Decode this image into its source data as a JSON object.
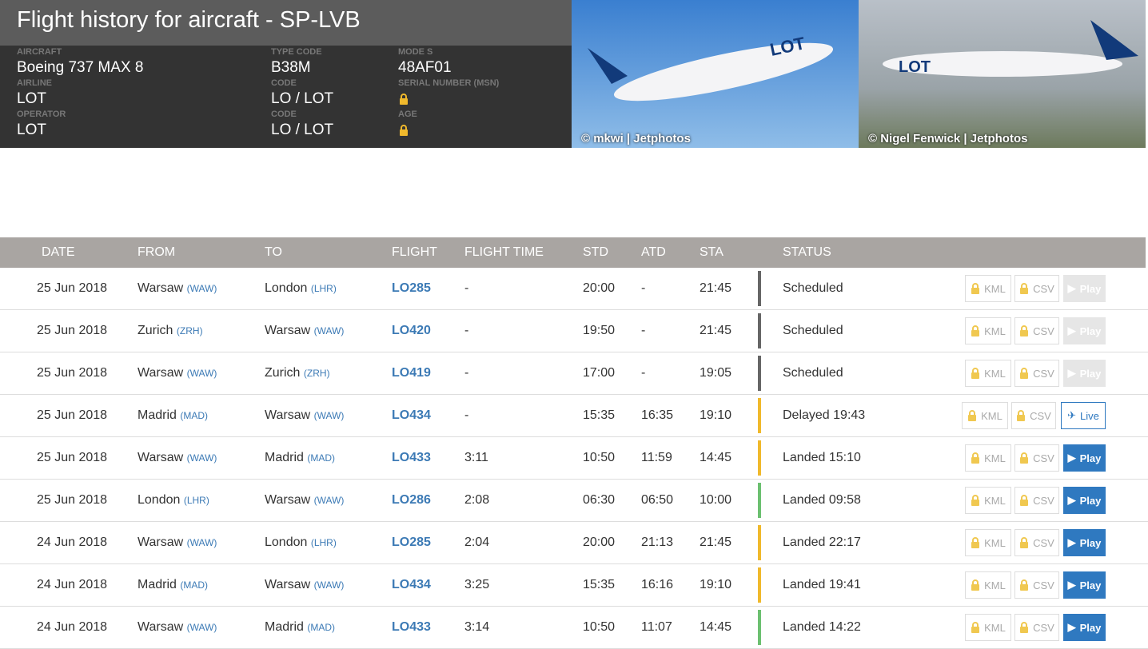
{
  "header": {
    "title": "Flight history for aircraft - SP-LVB",
    "fields": [
      {
        "label": "AIRCRAFT",
        "value": "Boeing 737 MAX 8"
      },
      {
        "label": "AIRLINE",
        "value": "LOT"
      },
      {
        "label": "OPERATOR",
        "value": "LOT"
      },
      {
        "label": "TYPE CODE",
        "value": "B38M"
      },
      {
        "label": "Code",
        "value": "LO / LOT"
      },
      {
        "label": "Code",
        "value": "LO / LOT"
      },
      {
        "label": "MODE S",
        "value": "48AF01"
      },
      {
        "label": "SERIAL NUMBER (MSN)",
        "value": null
      },
      {
        "label": "AGE",
        "value": null
      }
    ],
    "photos": [
      {
        "credit": "© mkwi | Jetphotos"
      },
      {
        "credit": "© Nigel Fenwick | Jetphotos"
      }
    ]
  },
  "table": {
    "columns": [
      "DATE",
      "FROM",
      "TO",
      "FLIGHT",
      "FLIGHT TIME",
      "STD",
      "ATD",
      "STA",
      "STATUS"
    ],
    "rows": [
      {
        "date": "25 Jun 2018",
        "from": "Warsaw",
        "from_code": "(WAW)",
        "to": "London",
        "to_code": "(LHR)",
        "flight": "LO285",
        "flight_time": "-",
        "std": "20:00",
        "atd": "-",
        "sta": "21:45",
        "status": "Scheduled",
        "status_color": "#666666",
        "kml": "KML",
        "csv": "CSV",
        "play": "Play",
        "play_color": "#e6e6e6"
      },
      {
        "date": "25 Jun 2018",
        "from": "Zurich",
        "from_code": "(ZRH)",
        "to": "Warsaw",
        "to_code": "(WAW)",
        "flight": "LO420",
        "flight_time": "-",
        "std": "19:50",
        "atd": "-",
        "sta": "21:45",
        "status": "Scheduled",
        "status_color": "#666666",
        "kml": "KML",
        "csv": "CSV",
        "play": "Play",
        "play_color": "#e6e6e6"
      },
      {
        "date": "25 Jun 2018",
        "from": "Warsaw",
        "from_code": "(WAW)",
        "to": "Zurich",
        "to_code": "(ZRH)",
        "flight": "LO419",
        "flight_time": "-",
        "std": "17:00",
        "atd": "-",
        "sta": "19:05",
        "status": "Scheduled",
        "status_color": "#666666",
        "kml": "KML",
        "csv": "CSV",
        "play": "Play",
        "play_color": "#e6e6e6"
      },
      {
        "date": "25 Jun 2018",
        "from": "Madrid",
        "from_code": "(MAD)",
        "to": "Warsaw",
        "to_code": "(WAW)",
        "flight": "LO434",
        "flight_time": "-",
        "std": "15:35",
        "atd": "16:35",
        "sta": "19:10",
        "status": "Delayed 19:43",
        "status_color": "#f0b92c",
        "kml": "KML",
        "csv": "CSV",
        "play": "Live",
        "play_color": "#ffffff"
      },
      {
        "date": "25 Jun 2018",
        "from": "Warsaw",
        "from_code": "(WAW)",
        "to": "Madrid",
        "to_code": "(MAD)",
        "flight": "LO433",
        "flight_time": "3:11",
        "std": "10:50",
        "atd": "11:59",
        "sta": "14:45",
        "status": "Landed 15:10",
        "status_color": "#f0b92c",
        "kml": "KML",
        "csv": "CSV",
        "play": "Play",
        "play_color": "#2f79c0"
      },
      {
        "date": "25 Jun 2018",
        "from": "London",
        "from_code": "(LHR)",
        "to": "Warsaw",
        "to_code": "(WAW)",
        "flight": "LO286",
        "flight_time": "2:08",
        "std": "06:30",
        "atd": "06:50",
        "sta": "10:00",
        "status": "Landed 09:58",
        "status_color": "#6cc070",
        "kml": "KML",
        "csv": "CSV",
        "play": "Play",
        "play_color": "#2f79c0"
      },
      {
        "date": "24 Jun 2018",
        "from": "Warsaw",
        "from_code": "(WAW)",
        "to": "London",
        "to_code": "(LHR)",
        "flight": "LO285",
        "flight_time": "2:04",
        "std": "20:00",
        "atd": "21:13",
        "sta": "21:45",
        "status": "Landed 22:17",
        "status_color": "#f0b92c",
        "kml": "KML",
        "csv": "CSV",
        "play": "Play",
        "play_color": "#2f79c0"
      },
      {
        "date": "24 Jun 2018",
        "from": "Madrid",
        "from_code": "(MAD)",
        "to": "Warsaw",
        "to_code": "(WAW)",
        "flight": "LO434",
        "flight_time": "3:25",
        "std": "15:35",
        "atd": "16:16",
        "sta": "19:10",
        "status": "Landed 19:41",
        "status_color": "#f0b92c",
        "kml": "KML",
        "csv": "CSV",
        "play": "Play",
        "play_color": "#2f79c0"
      },
      {
        "date": "24 Jun 2018",
        "from": "Warsaw",
        "from_code": "(WAW)",
        "to": "Madrid",
        "to_code": "(MAD)",
        "flight": "LO433",
        "flight_time": "3:14",
        "std": "10:50",
        "atd": "11:07",
        "sta": "14:45",
        "status": "Landed 14:22",
        "status_color": "#6cc070",
        "kml": "KML",
        "csv": "CSV",
        "play": "Play",
        "play_color": "#2f79c0"
      }
    ]
  }
}
